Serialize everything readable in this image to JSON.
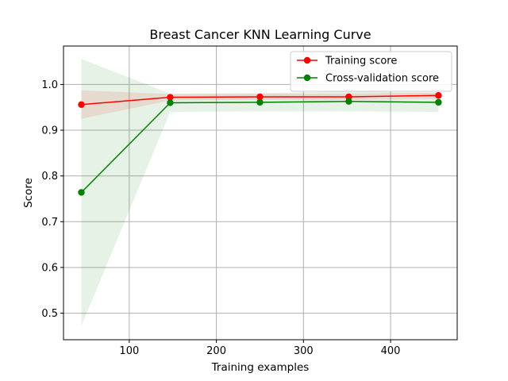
{
  "chart_data": {
    "type": "line",
    "title": "Breast Cancer KNN Learning Curve",
    "xlabel": "Training examples",
    "ylabel": "Score",
    "xlim": [
      24.5,
      476.5
    ],
    "ylim": [
      0.442,
      1.084
    ],
    "xticks": [
      100,
      200,
      300,
      400
    ],
    "yticks": [
      0.5,
      0.6,
      0.7,
      0.8,
      0.9,
      1.0
    ],
    "grid": true,
    "legend_position": "top-right",
    "x": [
      45,
      147,
      250,
      352,
      455
    ],
    "series": [
      {
        "name": "Training score",
        "color": "#ff0000",
        "marker": "circle",
        "values": [
          0.956,
          0.972,
          0.973,
          0.973,
          0.976
        ],
        "band_lower": [
          0.925,
          0.965,
          0.966,
          0.966,
          0.969
        ],
        "band_upper": [
          0.987,
          0.979,
          0.98,
          0.98,
          0.983
        ]
      },
      {
        "name": "Cross-validation score",
        "color": "#008000",
        "marker": "circle",
        "values": [
          0.764,
          0.96,
          0.961,
          0.963,
          0.961
        ],
        "band_lower": [
          0.472,
          0.94,
          0.941,
          0.941,
          0.94
        ],
        "band_upper": [
          1.056,
          0.98,
          0.981,
          0.985,
          0.982
        ]
      }
    ]
  }
}
